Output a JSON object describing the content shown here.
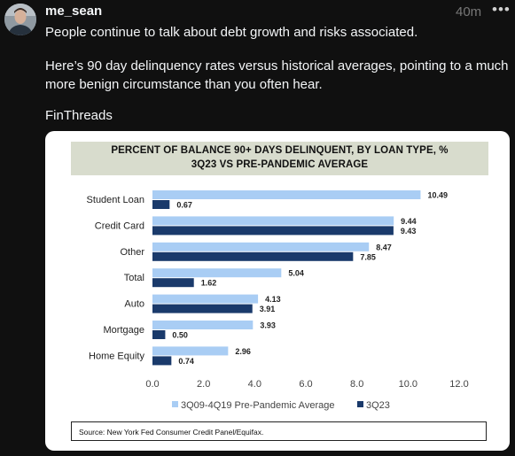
{
  "post": {
    "username": "me_sean",
    "timestamp": "40m",
    "more_icon": "more-horizontal-icon",
    "paragraphs": [
      "People continue to talk about debt growth and risks associated.",
      "Here’s 90 day delinquency rates versus historical averages, pointing to a much more benign circumstance than you often hear.",
      "FinThreads"
    ]
  },
  "chart_data": {
    "type": "bar",
    "orientation": "horizontal",
    "title": "PERCENT OF BALANCE 90+ DAYS DELINQUENT, BY LOAN TYPE, %",
    "subtitle": "3Q23 VS PRE-PANDEMIC AVERAGE",
    "categories": [
      "Student Loan",
      "Credit Card",
      "Other",
      "Total",
      "Auto",
      "Mortgage",
      "Home Equity"
    ],
    "series": [
      {
        "name": "3Q09-4Q19 Pre-Pandemic Average",
        "color": "#a9cdf4",
        "values": [
          10.49,
          9.44,
          8.47,
          5.04,
          4.13,
          3.93,
          2.96
        ]
      },
      {
        "name": "3Q23",
        "color": "#1a3a6b",
        "values": [
          0.67,
          9.43,
          7.85,
          1.62,
          3.91,
          0.5,
          0.74
        ]
      }
    ],
    "xlim": [
      0,
      12
    ],
    "xticks": [
      "0.0",
      "2.0",
      "4.0",
      "6.0",
      "8.0",
      "10.0",
      "12.0"
    ],
    "legend_position": "bottom",
    "source": "Source: New York Fed Consumer Credit Panel/Equifax."
  }
}
